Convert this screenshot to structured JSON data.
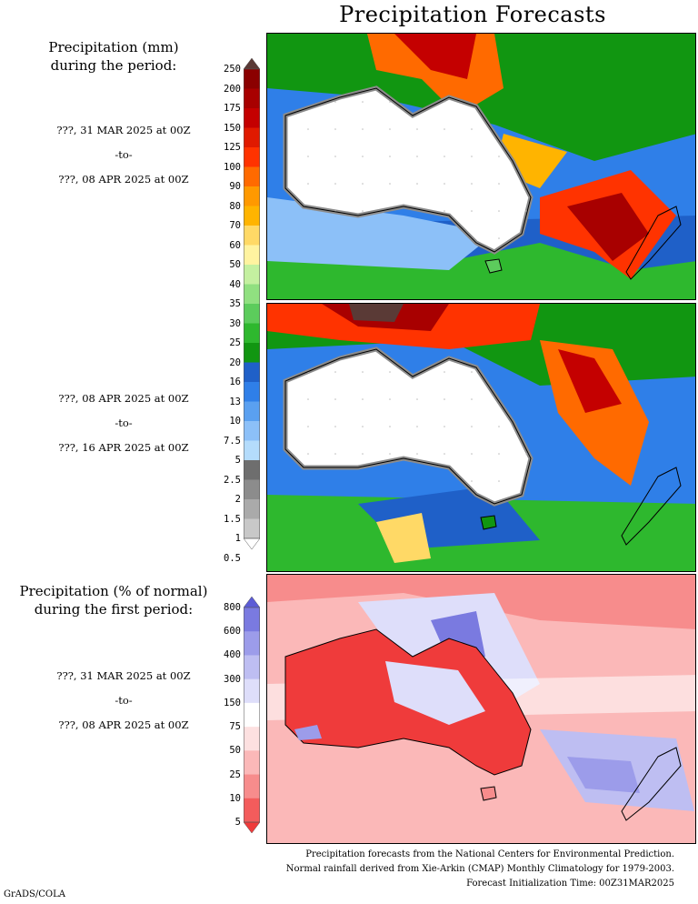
{
  "title": "Precipitation Forecasts",
  "panels": {
    "top_label": [
      "Precipitation (mm)",
      "during the period:"
    ],
    "p1": {
      "start": "???, 31 MAR 2025 at 00Z",
      "sep": "-to-",
      "end": "???, 08 APR 2025 at 00Z"
    },
    "p2": {
      "start": "???, 08 APR 2025 at 00Z",
      "sep": "-to-",
      "end": "???, 16 APR 2025 at 00Z"
    },
    "bottom_label": [
      "Precipitation (% of normal)",
      "during the first period:"
    ],
    "p3": {
      "start": "???, 31 MAR 2025 at 00Z",
      "sep": "-to-",
      "end": "???, 08 APR 2025 at 00Z"
    }
  },
  "precip_scale": {
    "ticks": [
      "250",
      "200",
      "175",
      "150",
      "125",
      "100",
      "90",
      "80",
      "70",
      "60",
      "50",
      "40",
      "35",
      "30",
      "25",
      "20",
      "16",
      "13",
      "10",
      "7.5",
      "5",
      "2.5",
      "2",
      "1.5",
      "1",
      "0.5"
    ],
    "colors": [
      "#5a3a36",
      "#8b0000",
      "#a80000",
      "#c40000",
      "#e01a00",
      "#ff3300",
      "#ff6a00",
      "#ff9900",
      "#ffb400",
      "#ffd966",
      "#fff3a0",
      "#c4f0a0",
      "#90e080",
      "#5ccc5c",
      "#2eb82e",
      "#119611",
      "#1f60c8",
      "#2f7fe8",
      "#5aa0f0",
      "#8cc0f8",
      "#b4dcfc",
      "#6e6e6e",
      "#8c8c8c",
      "#aaaaaa",
      "#c8c8c8",
      "#ffffff"
    ]
  },
  "anom_scale": {
    "ticks": [
      "800",
      "600",
      "400",
      "300",
      "150",
      "75",
      "50",
      "25",
      "10",
      "5"
    ],
    "colors": [
      "#5c5cd6",
      "#7a7ae0",
      "#9c9cea",
      "#bebef2",
      "#dedefa",
      "#ffffff",
      "#fde0e0",
      "#fbb8b8",
      "#f78c8c",
      "#f35c5c",
      "#ef3b3b"
    ]
  },
  "footer": {
    "line1": "Precipitation forecasts from the National Centers for Environmental Prediction.",
    "line2": "Normal rainfall derived from Xie-Arkin (CMAP) Monthly Climatology for 1979-2003.",
    "line3": "Forecast Initialization Time: 00Z31MAR2025"
  },
  "credit": "GrADS/COLA"
}
